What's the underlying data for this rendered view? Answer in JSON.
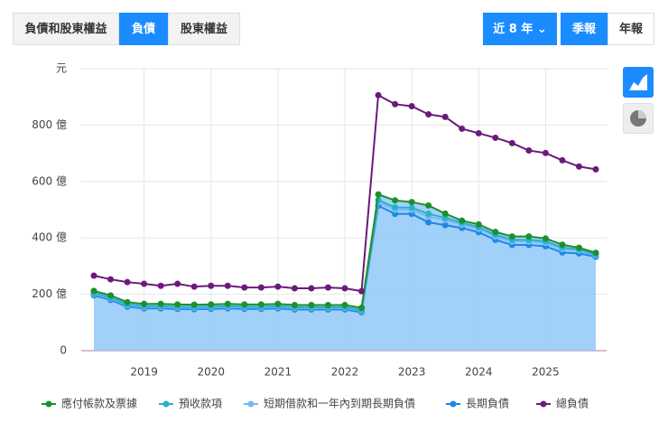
{
  "ui": {
    "tabs": [
      "負債和股東權益",
      "負債",
      "股東權益"
    ],
    "active_tab": 1,
    "range": "近 8 年",
    "periods": [
      "季報",
      "年報"
    ],
    "active_period": 0
  },
  "chart_data": {
    "type": "area",
    "categories": [
      null,
      null,
      null,
      "2019",
      null,
      null,
      null,
      "2020",
      null,
      null,
      null,
      "2021",
      null,
      null,
      null,
      "2022",
      null,
      null,
      null,
      "2023",
      null,
      null,
      null,
      "2024",
      null,
      null,
      null,
      "2025",
      null,
      null,
      null
    ],
    "ylim": [
      0,
      1000
    ],
    "yticks": [
      0,
      {
        "value": 200,
        "label": "200 億"
      },
      {
        "value": 400,
        "label": "400 億"
      },
      {
        "value": 600,
        "label": "600 億"
      },
      {
        "value": 800,
        "label": "800 億"
      },
      {
        "value": 1000,
        "label": "元"
      }
    ],
    "grid": true,
    "series": [
      {
        "name": "應付帳款及票據",
        "color": "#1e8f2e",
        "type": "area",
        "values": [
          8,
          8,
          8,
          8,
          8,
          8,
          8,
          8,
          8,
          8,
          8,
          8,
          8,
          8,
          8,
          8,
          8,
          20,
          25,
          20,
          30,
          15,
          8,
          10,
          10,
          12,
          12,
          10,
          10,
          6,
          6
        ]
      },
      {
        "name": "預收款項",
        "color": "#26b3c6",
        "type": "area",
        "values": [
          3,
          3,
          3,
          3,
          3,
          3,
          3,
          3,
          3,
          3,
          3,
          3,
          3,
          3,
          3,
          3,
          3,
          8,
          8,
          8,
          10,
          8,
          6,
          6,
          6,
          6,
          6,
          6,
          6,
          4,
          3
        ]
      },
      {
        "name": "短期借款和一年內到期長期負債",
        "color": "#7ab8f5",
        "type": "area",
        "values": [
          5,
          5,
          5,
          5,
          5,
          5,
          5,
          5,
          5,
          5,
          5,
          5,
          5,
          5,
          5,
          5,
          5,
          12,
          15,
          14,
          20,
          18,
          12,
          12,
          12,
          12,
          12,
          12,
          12,
          10,
          5
        ]
      },
      {
        "name": "長期負債",
        "color": "#1e88e5",
        "type": "area",
        "values": [
          196,
          180,
          156,
          150,
          150,
          148,
          147,
          148,
          150,
          148,
          148,
          150,
          146,
          146,
          146,
          146,
          136,
          514,
          485,
          485,
          455,
          445,
          435,
          420,
          393,
          375,
          375,
          370,
          348,
          345,
          333
        ]
      },
      {
        "name": "總負債",
        "color": "#6a1b7a",
        "type": "line",
        "values": [
          266,
          253,
          243,
          237,
          230,
          237,
          227,
          230,
          230,
          224,
          224,
          227,
          221,
          221,
          224,
          221,
          211,
          906,
          874,
          867,
          838,
          829,
          787,
          771,
          755,
          736,
          710,
          701,
          675,
          653,
          643
        ]
      }
    ]
  }
}
